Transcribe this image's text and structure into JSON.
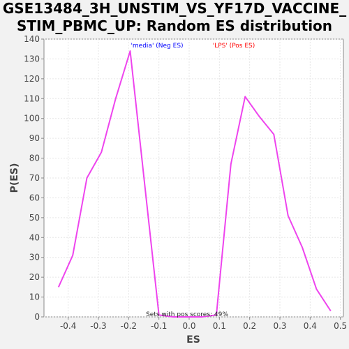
{
  "chart_data": {
    "type": "line",
    "title_lines": [
      "GSE13484_3H_UNSTIM_VS_YF17D_VACCINE_",
      "STIM_PBMC_UP: Random ES distribution"
    ],
    "xlabel": "ES",
    "ylabel": "P(ES)",
    "xlim": [
      -0.48,
      0.51
    ],
    "ylim": [
      0,
      140
    ],
    "x_ticks": [
      -0.4,
      -0.3,
      -0.2,
      -0.1,
      0.0,
      0.1,
      0.2,
      0.3,
      0.4,
      0.5
    ],
    "x_tick_labels": [
      "-0.4",
      "-0.3",
      "-0.2",
      "-0.1",
      "0.0",
      "0.1",
      "0.2",
      "0.3",
      "0.4",
      "0.5"
    ],
    "y_ticks": [
      0,
      10,
      20,
      30,
      40,
      50,
      60,
      70,
      80,
      90,
      100,
      110,
      120,
      130,
      140
    ],
    "y_tick_labels": [
      "0",
      "10",
      "20",
      "30",
      "40",
      "50",
      "60",
      "70",
      "80",
      "90",
      "100",
      "110",
      "120",
      "130",
      "140"
    ],
    "grid": true,
    "legend": [
      {
        "label": "'media' (Neg ES)",
        "color": "#0000ff"
      },
      {
        "label": "'LPS' (Pos ES)",
        "color": "#ff0000"
      }
    ],
    "annotation": "Sets with pos scores: 49%",
    "series": [
      {
        "color": "#ee44ee",
        "x": [
          -0.432,
          -0.385,
          -0.338,
          -0.29,
          -0.243,
          -0.195,
          -0.148,
          -0.1,
          -0.053,
          -0.005,
          0.042,
          0.09,
          0.138,
          0.185,
          0.232,
          0.28,
          0.327,
          0.374,
          0.421,
          0.468
        ],
        "y": [
          15,
          31,
          70,
          83,
          110,
          134,
          68,
          1,
          0,
          0,
          0,
          1,
          77,
          111,
          101,
          92,
          51,
          35,
          14,
          3
        ]
      }
    ]
  }
}
